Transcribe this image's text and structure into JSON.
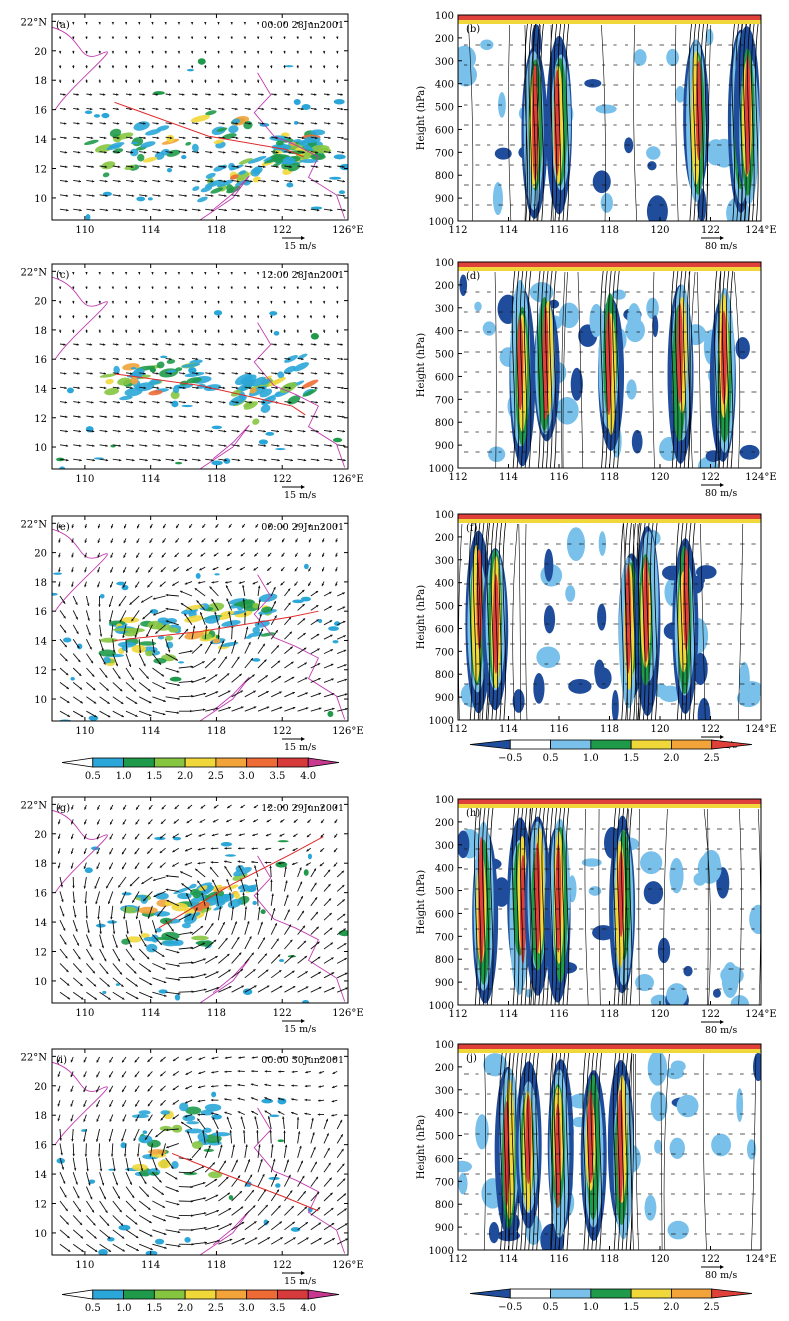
{
  "map_panels": [
    {
      "label": "(a)",
      "time": "00:00 28Jun2001",
      "track": [
        [
          111.8,
          16.5
        ],
        [
          117.5,
          14.2
        ],
        [
          122.2,
          13.3
        ],
        [
          123.3,
          12.8
        ]
      ],
      "bands": [
        {
          "lon": 115,
          "lat": 14,
          "dlon": 5,
          "dlat": 1.4,
          "rot": -14
        },
        {
          "lon": 120,
          "lat": 11.8,
          "dlon": 3.5,
          "dlat": 0.9,
          "rot": -20
        },
        {
          "lon": 123,
          "lat": 13.5,
          "dlon": 1.4,
          "dlat": 1,
          "rot": 0
        }
      ],
      "vortex": null
    },
    {
      "label": "(c)",
      "time": "12:00 28Jun2001",
      "track": [
        [
          111.8,
          15.0
        ],
        [
          117,
          14.2
        ],
        [
          122.6,
          12.8
        ],
        [
          123.4,
          12.2
        ]
      ],
      "bands": [
        {
          "lon": 114.5,
          "lat": 14.6,
          "dlon": 3.2,
          "dlat": 1.2,
          "rot": -8
        },
        {
          "lon": 121.5,
          "lat": 14,
          "dlon": 2.4,
          "dlat": 1.6,
          "rot": -25
        }
      ],
      "vortex": null
    },
    {
      "label": "(e)",
      "time": "00:00 29Jun2001",
      "track": [
        [
          111.8,
          14.0
        ],
        [
          117,
          14.6
        ],
        [
          122.5,
          15.6
        ],
        [
          124.2,
          16.0
        ]
      ],
      "bands": [
        {
          "lon": 113.5,
          "lat": 14,
          "dlon": 2.2,
          "dlat": 1.5,
          "rot": 0
        },
        {
          "lon": 119,
          "lat": 15.2,
          "dlon": 2.5,
          "dlat": 1.5,
          "rot": -10
        }
      ],
      "vortex": {
        "lon": 115.5,
        "lat": 14.3,
        "r": 3
      }
    },
    {
      "label": "(g)",
      "time": "12:00 29Jun2001",
      "track": [
        [
          114.5,
          13.6
        ],
        [
          119,
          16.6
        ],
        [
          122.5,
          18.6
        ],
        [
          124.5,
          19.8
        ]
      ],
      "bands": [
        {
          "lon": 115,
          "lat": 14,
          "dlon": 2.6,
          "dlat": 1.8,
          "rot": 0
        },
        {
          "lon": 118,
          "lat": 16,
          "dlon": 2.2,
          "dlat": 1.2,
          "rot": -20
        }
      ],
      "vortex": {
        "lon": 115.5,
        "lat": 14.6,
        "r": 4
      }
    },
    {
      "label": "(i)",
      "time": "00:00 30Jun2001",
      "track": [
        [
          115.3,
          15.4
        ],
        [
          118,
          14.2
        ],
        [
          122,
          12.5
        ],
        [
          124.2,
          11.5
        ]
      ],
      "bands": [
        {
          "lon": 115.6,
          "lat": 16.2,
          "dlon": 2.8,
          "dlat": 2.4,
          "rot": 0
        }
      ],
      "vortex": {
        "lon": 115.8,
        "lat": 15.8,
        "r": 5
      }
    }
  ],
  "section_panels": [
    {
      "label": "(b)",
      "towers": [
        115,
        116,
        121.5,
        123.2,
        123.5
      ]
    },
    {
      "label": "(d)",
      "towers": [
        114.5,
        115.5,
        118,
        120.8,
        122.5
      ]
    },
    {
      "label": "(f)",
      "towers": [
        112.8,
        113.5,
        118.8,
        119.5,
        121
      ]
    },
    {
      "label": "(h)",
      "towers": [
        113,
        114.5,
        115.2,
        116,
        118.5
      ]
    },
    {
      "label": "(j)",
      "towers": [
        114,
        114.8,
        116,
        117.3,
        118.5
      ]
    }
  ],
  "map_axes": {
    "lon_ticks": [
      "110",
      "114",
      "118",
      "122",
      "126°E"
    ],
    "lat_ticks": [
      "22°N",
      "20",
      "18",
      "16",
      "14",
      "12",
      "10"
    ],
    "lon_range": [
      108,
      126
    ],
    "lat_range": [
      8.5,
      22.5
    ],
    "ref_vector": "15 m/s"
  },
  "section_axes": {
    "x_ticks": [
      "112",
      "114",
      "116",
      "118",
      "120",
      "122",
      "124°E"
    ],
    "x_range": [
      112,
      124
    ],
    "y_ticks": [
      "100",
      "200",
      "300",
      "400",
      "500",
      "600",
      "700",
      "800",
      "900",
      "1000"
    ],
    "y_range": [
      100,
      1000
    ],
    "ylabel": "Height (hPa)",
    "ref_vector": "80 m/s"
  },
  "colorbar_left": {
    "labels": [
      "0.5",
      "1.0",
      "1.5",
      "2.0",
      "2.5",
      "3.0",
      "3.5",
      "4.0"
    ],
    "colors": [
      "#ffffff",
      "#2aa6d8",
      "#1f9a4a",
      "#86c540",
      "#f1d83a",
      "#f2a33a",
      "#ef6b35",
      "#d63a3a",
      "#c8388f"
    ]
  },
  "colorbar_right": {
    "labels": [
      "−0.5",
      "0.5",
      "1.0",
      "1.5",
      "2.0",
      "2.5"
    ],
    "colors": [
      "#1f4d9c",
      "#ffffff",
      "#79c0ea",
      "#1f9a4a",
      "#f1d83a",
      "#f2a33a",
      "#e0403a"
    ]
  },
  "chart_data": [
    {
      "panel": "(a)",
      "type": "heatmap",
      "time": "00:00 28Jun2001",
      "x_axis_ticks": [
        110,
        114,
        118,
        122,
        126
      ],
      "y_axis_ticks": [
        10,
        12,
        14,
        16,
        18,
        20,
        22
      ],
      "xlim": [
        108,
        126
      ],
      "ylim": [
        8.5,
        22.5
      ]
    },
    {
      "panel": "(b)",
      "type": "heatmap",
      "x_axis_ticks": [
        112,
        114,
        116,
        118,
        120,
        122,
        124
      ],
      "y_axis_ticks": [
        100,
        200,
        300,
        400,
        500,
        600,
        700,
        800,
        900,
        1000
      ],
      "xlim": [
        112,
        124
      ],
      "ylim": [
        1000,
        100
      ]
    },
    {
      "panel": "(c)",
      "type": "heatmap",
      "time": "12:00 28Jun2001",
      "x_axis_ticks": [
        110,
        114,
        118,
        122,
        126
      ],
      "y_axis_ticks": [
        10,
        12,
        14,
        16,
        18,
        20,
        22
      ],
      "xlim": [
        108,
        126
      ],
      "ylim": [
        8.5,
        22.5
      ]
    },
    {
      "panel": "(d)",
      "type": "heatmap",
      "x_axis_ticks": [
        112,
        114,
        116,
        118,
        120,
        122,
        124
      ],
      "y_axis_ticks": [
        100,
        200,
        300,
        400,
        500,
        600,
        700,
        800,
        900,
        1000
      ],
      "xlim": [
        112,
        124
      ],
      "ylim": [
        1000,
        100
      ]
    },
    {
      "panel": "(e)",
      "type": "heatmap",
      "time": "00:00 29Jun2001",
      "x_axis_ticks": [
        110,
        114,
        118,
        122,
        126
      ],
      "y_axis_ticks": [
        10,
        12,
        14,
        16,
        18,
        20,
        22
      ],
      "xlim": [
        108,
        126
      ],
      "ylim": [
        8.5,
        22.5
      ]
    },
    {
      "panel": "(f)",
      "type": "heatmap",
      "x_axis_ticks": [
        112,
        114,
        116,
        118,
        120,
        122,
        124
      ],
      "y_axis_ticks": [
        100,
        200,
        300,
        400,
        500,
        600,
        700,
        800,
        900,
        1000
      ],
      "xlim": [
        112,
        124
      ],
      "ylim": [
        1000,
        100
      ]
    },
    {
      "panel": "(g)",
      "type": "heatmap",
      "time": "12:00 29Jun2001",
      "x_axis_ticks": [
        110,
        114,
        118,
        122,
        126
      ],
      "y_axis_ticks": [
        10,
        12,
        14,
        16,
        18,
        20,
        22
      ],
      "xlim": [
        108,
        126
      ],
      "ylim": [
        8.5,
        22.5
      ]
    },
    {
      "panel": "(h)",
      "type": "heatmap",
      "x_axis_ticks": [
        112,
        114,
        116,
        118,
        120,
        122,
        124
      ],
      "y_axis_ticks": [
        100,
        200,
        300,
        400,
        500,
        600,
        700,
        800,
        900,
        1000
      ],
      "xlim": [
        112,
        124
      ],
      "ylim": [
        1000,
        100
      ]
    },
    {
      "panel": "(i)",
      "type": "heatmap",
      "time": "00:00 30Jun2001",
      "x_axis_ticks": [
        110,
        114,
        118,
        122,
        126
      ],
      "y_axis_ticks": [
        10,
        12,
        14,
        16,
        18,
        20,
        22
      ],
      "xlim": [
        108,
        126
      ],
      "ylim": [
        8.5,
        22.5
      ]
    },
    {
      "panel": "(j)",
      "type": "heatmap",
      "x_axis_ticks": [
        112,
        114,
        116,
        118,
        120,
        122,
        124
      ],
      "y_axis_ticks": [
        100,
        200,
        300,
        400,
        500,
        600,
        700,
        800,
        900,
        1000
      ],
      "xlim": [
        112,
        124
      ],
      "ylim": [
        1000,
        100
      ]
    }
  ]
}
